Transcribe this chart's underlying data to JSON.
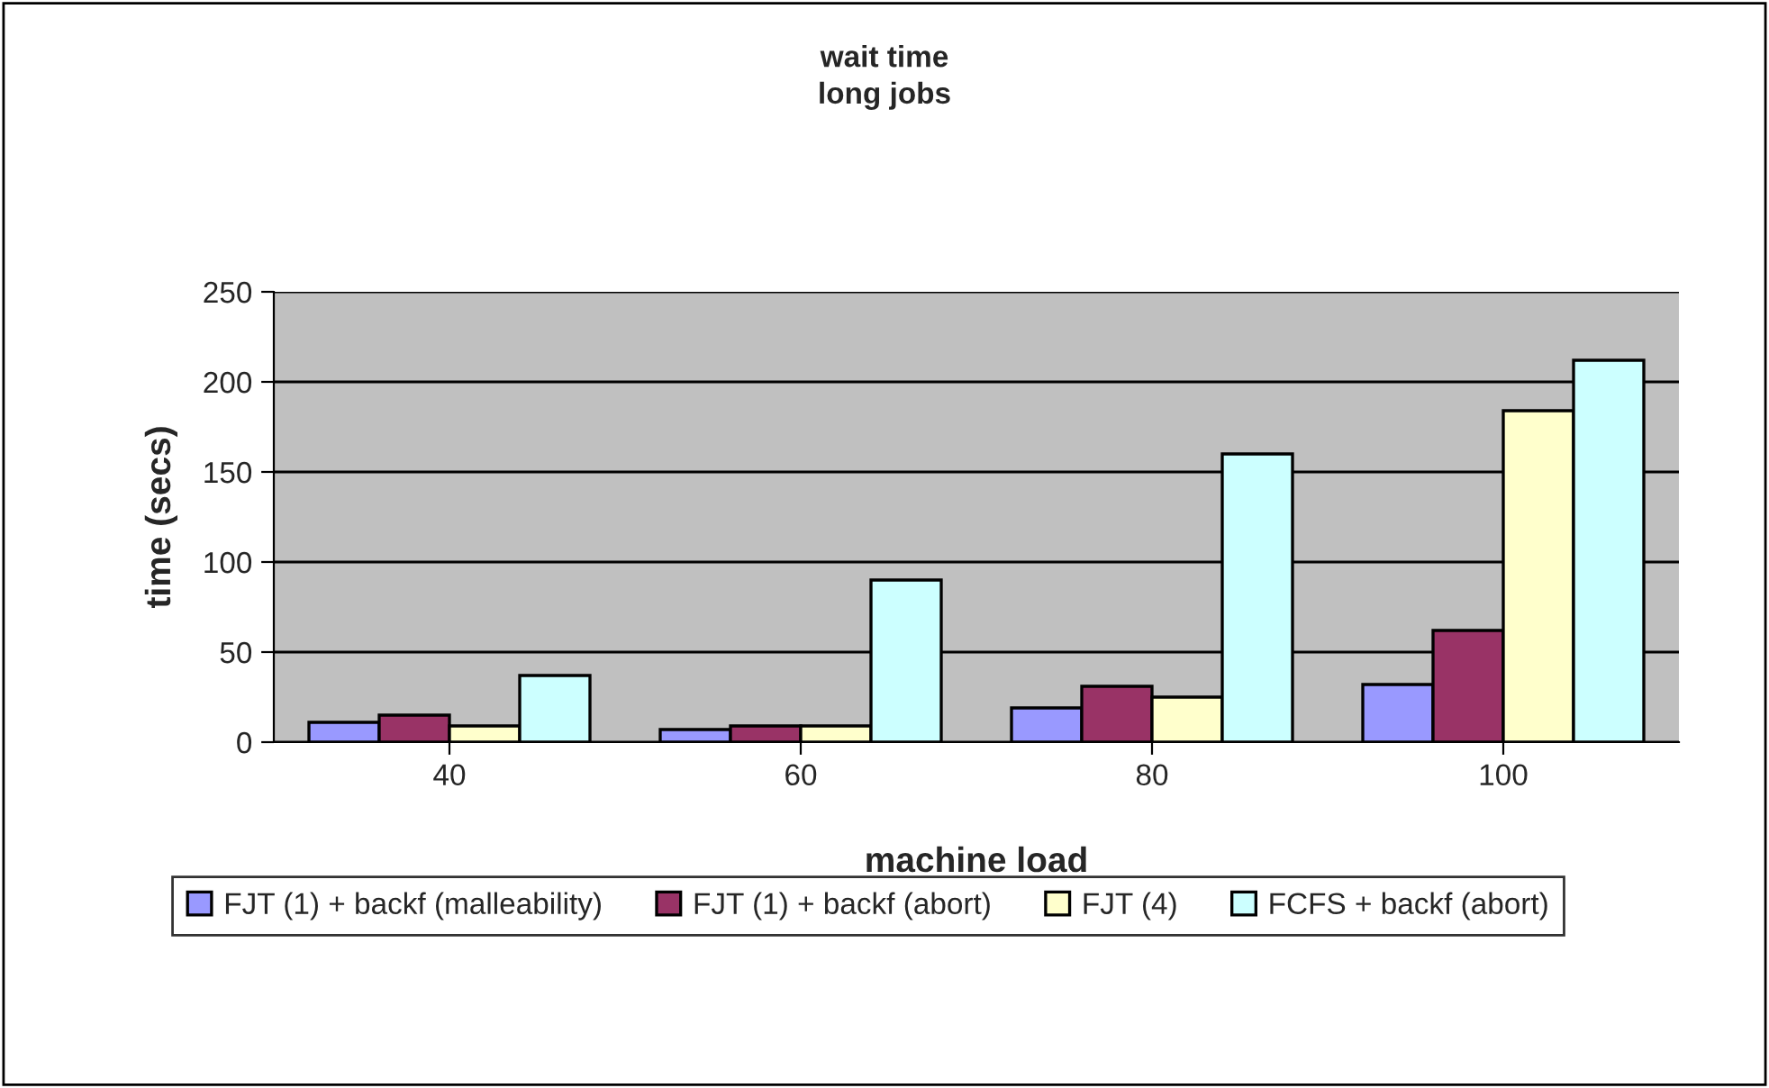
{
  "chart_data": {
    "type": "bar",
    "title": "wait time\nlong jobs",
    "xlabel": "machine load",
    "ylabel": "time (secs)",
    "categories": [
      "40",
      "60",
      "80",
      "100"
    ],
    "series": [
      {
        "name": "FJT (1) + backf (malleability)",
        "color": "#9999ff",
        "values": [
          11,
          7,
          19,
          32
        ]
      },
      {
        "name": "FJT (1) + backf (abort)",
        "color": "#993366",
        "values": [
          15,
          9,
          31,
          62
        ]
      },
      {
        "name": "FJT (4)",
        "color": "#ffffcc",
        "values": [
          9,
          9,
          25,
          184
        ]
      },
      {
        "name": "FCFS + backf (abort)",
        "color": "#ccffff",
        "values": [
          37,
          90,
          160,
          212
        ]
      }
    ],
    "ylim": [
      0,
      250
    ],
    "yticks": [
      0,
      50,
      100,
      150,
      200,
      250
    ],
    "grid": "y",
    "legend": "bottom"
  }
}
